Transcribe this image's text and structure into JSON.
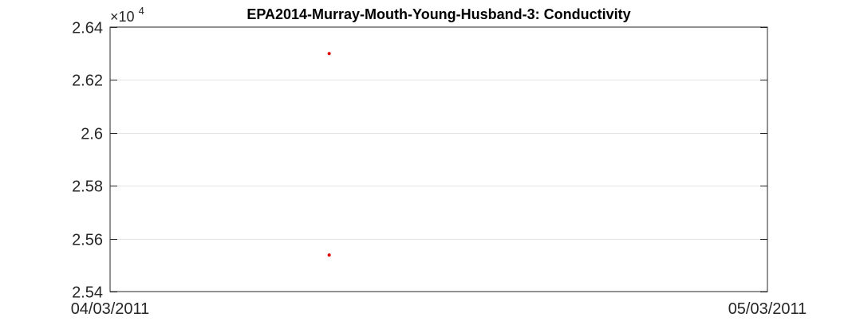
{
  "chart_data": {
    "type": "scatter",
    "title": "EPA2014-Murray-Mouth-Young-Husband-3: Conductivity",
    "xlabel": "",
    "ylabel": "",
    "exponent_label": {
      "base": "×10",
      "power": "4"
    },
    "x_tick_labels": [
      "04/03/2011",
      "05/03/2011"
    ],
    "y_ticks": [
      2.54,
      2.56,
      2.58,
      2.6,
      2.62,
      2.64
    ],
    "y_tick_labels": [
      "2.54",
      "2.56",
      "2.58",
      "2.6",
      "2.62",
      "2.64"
    ],
    "xlim": [
      "2011-03-04",
      "2011-03-05"
    ],
    "ylim": [
      2.54,
      2.64
    ],
    "grid": "horizontal",
    "legend": "none",
    "points": [
      {
        "x": "2011-03-04T08:00",
        "y": 2.63
      },
      {
        "x": "2011-03-04T08:00",
        "y": 2.5538
      }
    ],
    "colors": {
      "marker": "#e00000",
      "axis": "#262626",
      "grid": "#e6e6e6",
      "text": "#262626",
      "title": "#000000"
    }
  }
}
